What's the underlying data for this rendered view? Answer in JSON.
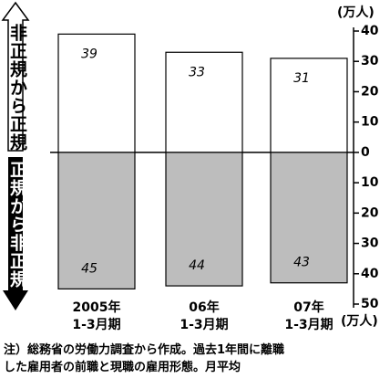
{
  "chart_data": {
    "type": "bar",
    "unit_label": "(万人)",
    "categories": [
      "2005年\n1-3月期",
      "06年\n1-3月期",
      "07年\n1-3月期"
    ],
    "series": [
      {
        "name": "非正規から正規",
        "color": "#ffffff",
        "values": [
          39,
          33,
          31
        ]
      },
      {
        "name": "正規から非正規",
        "color": "#bdbdbd",
        "values": [
          -45,
          -44,
          -43
        ],
        "value_labels": [
          "45",
          "44",
          "43"
        ]
      }
    ],
    "ylim": [
      -50,
      40
    ],
    "yticks": [
      40,
      30,
      20,
      10,
      0,
      {
        "value": -10,
        "label": "10"
      },
      {
        "value": -20,
        "label": "20"
      },
      {
        "value": -30,
        "label": "30"
      },
      {
        "value": -40,
        "label": "40"
      },
      {
        "value": -50,
        "label": "50"
      }
    ],
    "note": "注）総務省の労働力調査から作成。過去1年間に離職\nした雇用者の前職と現職の雇用形態。月平均"
  }
}
